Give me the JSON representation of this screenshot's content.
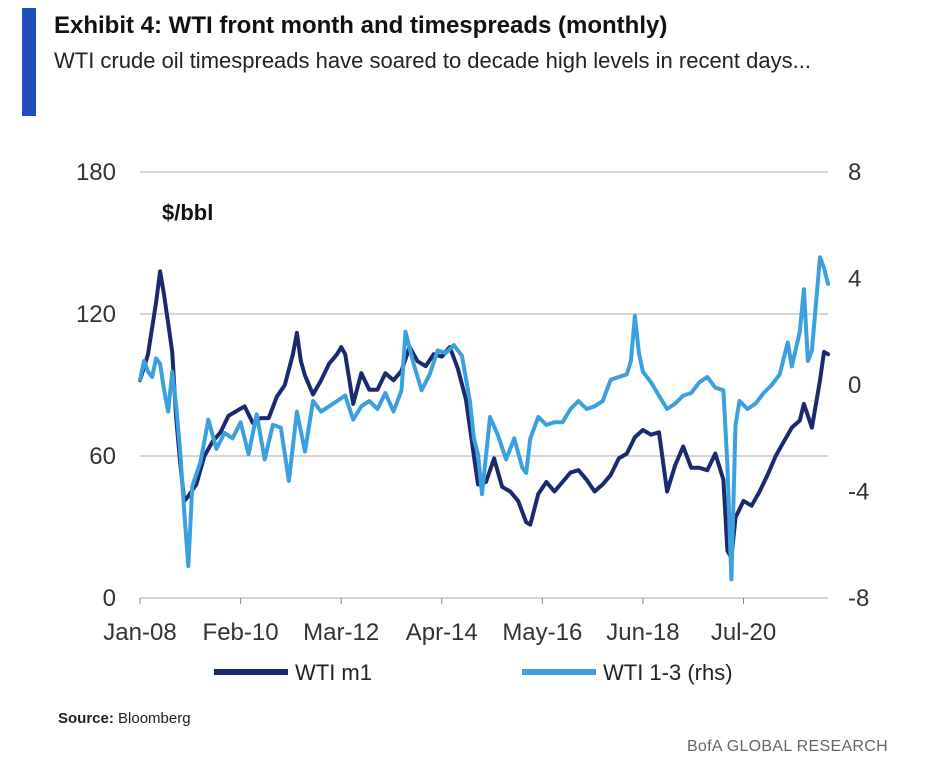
{
  "header": {
    "title": "Exhibit 4: WTI front month and timespreads (monthly)",
    "subtitle": "WTI crude oil timespreads have soared to decade high levels in recent days..."
  },
  "footer": {
    "source_label": "Source:",
    "source_value": "Bloomberg",
    "brand": "BofA GLOBAL RESEARCH"
  },
  "colors": {
    "accent": "#1f4fbf",
    "m1": "#1b2a6e",
    "spread": "#3aa0de",
    "grid": "#bdbdbd"
  },
  "chart_data": {
    "type": "line",
    "unit_label": "$/bbl",
    "ylim_left": [
      0,
      180
    ],
    "yticks_left": [
      0,
      60,
      120,
      180
    ],
    "ylim_right": [
      -8,
      8
    ],
    "yticks_right": [
      -8,
      -4,
      0,
      4,
      8
    ],
    "x_tick_labels": [
      "Jan-08",
      "Feb-10",
      "Mar-12",
      "Apr-14",
      "May-16",
      "Jun-18",
      "Jul-20"
    ],
    "x_tick_dates": [
      "2008-01",
      "2010-02",
      "2012-03",
      "2014-04",
      "2016-05",
      "2018-06",
      "2020-07"
    ],
    "xlim": [
      "2008-01",
      "2022-04"
    ],
    "grid": true,
    "legend_position": "bottom",
    "series": [
      {
        "name": "WTI m1",
        "axis": "left",
        "points": [
          [
            "2008-01",
            92
          ],
          [
            "2008-03",
            103
          ],
          [
            "2008-05",
            125
          ],
          [
            "2008-06",
            138
          ],
          [
            "2008-07",
            128
          ],
          [
            "2008-08",
            116
          ],
          [
            "2008-09",
            104
          ],
          [
            "2008-10",
            76
          ],
          [
            "2008-11",
            57
          ],
          [
            "2008-12",
            41
          ],
          [
            "2009-01",
            43
          ],
          [
            "2009-03",
            48
          ],
          [
            "2009-05",
            60
          ],
          [
            "2009-07",
            66
          ],
          [
            "2009-09",
            70
          ],
          [
            "2009-11",
            77
          ],
          [
            "2010-01",
            79
          ],
          [
            "2010-03",
            81
          ],
          [
            "2010-05",
            74
          ],
          [
            "2010-07",
            76
          ],
          [
            "2010-09",
            76
          ],
          [
            "2010-11",
            85
          ],
          [
            "2011-01",
            90
          ],
          [
            "2011-03",
            103
          ],
          [
            "2011-04",
            112
          ],
          [
            "2011-05",
            100
          ],
          [
            "2011-06",
            94
          ],
          [
            "2011-08",
            86
          ],
          [
            "2011-10",
            92
          ],
          [
            "2011-12",
            99
          ],
          [
            "2012-02",
            103
          ],
          [
            "2012-03",
            106
          ],
          [
            "2012-04",
            103
          ],
          [
            "2012-06",
            82
          ],
          [
            "2012-08",
            95
          ],
          [
            "2012-10",
            88
          ],
          [
            "2012-12",
            88
          ],
          [
            "2013-02",
            95
          ],
          [
            "2013-04",
            92
          ],
          [
            "2013-06",
            96
          ],
          [
            "2013-08",
            106
          ],
          [
            "2013-10",
            100
          ],
          [
            "2013-12",
            98
          ],
          [
            "2014-02",
            103
          ],
          [
            "2014-04",
            102
          ],
          [
            "2014-06",
            106
          ],
          [
            "2014-08",
            97
          ],
          [
            "2014-10",
            84
          ],
          [
            "2014-12",
            60
          ],
          [
            "2015-01",
            48
          ],
          [
            "2015-03",
            49
          ],
          [
            "2015-05",
            59
          ],
          [
            "2015-07",
            47
          ],
          [
            "2015-09",
            45
          ],
          [
            "2015-11",
            41
          ],
          [
            "2016-01",
            32
          ],
          [
            "2016-02",
            31
          ],
          [
            "2016-04",
            44
          ],
          [
            "2016-06",
            49
          ],
          [
            "2016-08",
            45
          ],
          [
            "2016-10",
            49
          ],
          [
            "2016-12",
            53
          ],
          [
            "2017-02",
            54
          ],
          [
            "2017-04",
            50
          ],
          [
            "2017-06",
            45
          ],
          [
            "2017-08",
            48
          ],
          [
            "2017-10",
            52
          ],
          [
            "2017-12",
            59
          ],
          [
            "2018-02",
            61
          ],
          [
            "2018-04",
            68
          ],
          [
            "2018-06",
            71
          ],
          [
            "2018-08",
            69
          ],
          [
            "2018-10",
            70
          ],
          [
            "2018-12",
            45
          ],
          [
            "2019-02",
            56
          ],
          [
            "2019-04",
            64
          ],
          [
            "2019-06",
            55
          ],
          [
            "2019-08",
            55
          ],
          [
            "2019-10",
            54
          ],
          [
            "2019-12",
            61
          ],
          [
            "2020-02",
            50
          ],
          [
            "2020-03",
            20
          ],
          [
            "2020-04",
            17
          ],
          [
            "2020-05",
            34
          ],
          [
            "2020-07",
            41
          ],
          [
            "2020-09",
            39
          ],
          [
            "2020-11",
            45
          ],
          [
            "2021-01",
            52
          ],
          [
            "2021-03",
            60
          ],
          [
            "2021-05",
            66
          ],
          [
            "2021-07",
            72
          ],
          [
            "2021-09",
            75
          ],
          [
            "2021-10",
            82
          ],
          [
            "2021-12",
            72
          ],
          [
            "2022-02",
            92
          ],
          [
            "2022-03",
            104
          ],
          [
            "2022-04",
            103
          ]
        ]
      },
      {
        "name": "WTI 1-3 (rhs)",
        "axis": "right",
        "points": [
          [
            "2008-01",
            0.2
          ],
          [
            "2008-02",
            0.9
          ],
          [
            "2008-03",
            0.5
          ],
          [
            "2008-04",
            0.3
          ],
          [
            "2008-05",
            1.0
          ],
          [
            "2008-06",
            0.8
          ],
          [
            "2008-07",
            -0.2
          ],
          [
            "2008-08",
            -1.0
          ],
          [
            "2008-09",
            0.5
          ],
          [
            "2008-10",
            -0.8
          ],
          [
            "2008-11",
            -2.5
          ],
          [
            "2008-12",
            -4.8
          ],
          [
            "2009-01",
            -6.8
          ],
          [
            "2009-02",
            -3.8
          ],
          [
            "2009-04",
            -2.9
          ],
          [
            "2009-06",
            -1.3
          ],
          [
            "2009-08",
            -2.4
          ],
          [
            "2009-10",
            -1.8
          ],
          [
            "2009-12",
            -2.0
          ],
          [
            "2010-02",
            -1.4
          ],
          [
            "2010-04",
            -2.6
          ],
          [
            "2010-06",
            -1.1
          ],
          [
            "2010-08",
            -2.8
          ],
          [
            "2010-10",
            -1.5
          ],
          [
            "2010-12",
            -1.6
          ],
          [
            "2011-02",
            -3.6
          ],
          [
            "2011-04",
            -1.0
          ],
          [
            "2011-06",
            -2.5
          ],
          [
            "2011-08",
            -0.6
          ],
          [
            "2011-10",
            -1.0
          ],
          [
            "2011-12",
            -0.8
          ],
          [
            "2012-02",
            -0.6
          ],
          [
            "2012-04",
            -0.4
          ],
          [
            "2012-06",
            -1.3
          ],
          [
            "2012-08",
            -0.8
          ],
          [
            "2012-10",
            -0.6
          ],
          [
            "2012-12",
            -0.9
          ],
          [
            "2013-02",
            -0.3
          ],
          [
            "2013-04",
            -1.0
          ],
          [
            "2013-06",
            -0.2
          ],
          [
            "2013-07",
            2.0
          ],
          [
            "2013-09",
            0.8
          ],
          [
            "2013-11",
            -0.2
          ],
          [
            "2014-01",
            0.4
          ],
          [
            "2014-03",
            1.3
          ],
          [
            "2014-05",
            1.2
          ],
          [
            "2014-07",
            1.5
          ],
          [
            "2014-09",
            1.1
          ],
          [
            "2014-11",
            -0.6
          ],
          [
            "2014-12",
            -2.0
          ],
          [
            "2015-01",
            -2.6
          ],
          [
            "2015-02",
            -4.1
          ],
          [
            "2015-04",
            -1.2
          ],
          [
            "2015-06",
            -1.9
          ],
          [
            "2015-08",
            -2.8
          ],
          [
            "2015-10",
            -2.0
          ],
          [
            "2015-12",
            -3.1
          ],
          [
            "2016-01",
            -3.3
          ],
          [
            "2016-02",
            -2.0
          ],
          [
            "2016-04",
            -1.2
          ],
          [
            "2016-06",
            -1.5
          ],
          [
            "2016-08",
            -1.4
          ],
          [
            "2016-10",
            -1.4
          ],
          [
            "2016-12",
            -0.9
          ],
          [
            "2017-02",
            -0.6
          ],
          [
            "2017-04",
            -0.9
          ],
          [
            "2017-06",
            -0.8
          ],
          [
            "2017-08",
            -0.6
          ],
          [
            "2017-10",
            0.2
          ],
          [
            "2017-12",
            0.3
          ],
          [
            "2018-02",
            0.4
          ],
          [
            "2018-03",
            0.9
          ],
          [
            "2018-04",
            2.6
          ],
          [
            "2018-05",
            1.2
          ],
          [
            "2018-06",
            0.5
          ],
          [
            "2018-08",
            0.1
          ],
          [
            "2018-10",
            -0.4
          ],
          [
            "2018-12",
            -0.9
          ],
          [
            "2019-02",
            -0.7
          ],
          [
            "2019-04",
            -0.4
          ],
          [
            "2019-06",
            -0.3
          ],
          [
            "2019-08",
            0.1
          ],
          [
            "2019-10",
            0.3
          ],
          [
            "2019-12",
            -0.1
          ],
          [
            "2020-02",
            -0.2
          ],
          [
            "2020-03",
            -3.0
          ],
          [
            "2020-04",
            -7.3
          ],
          [
            "2020-05",
            -1.5
          ],
          [
            "2020-06",
            -0.6
          ],
          [
            "2020-08",
            -0.9
          ],
          [
            "2020-10",
            -0.7
          ],
          [
            "2020-12",
            -0.3
          ],
          [
            "2021-02",
            0.0
          ],
          [
            "2021-04",
            0.4
          ],
          [
            "2021-06",
            1.6
          ],
          [
            "2021-07",
            0.7
          ],
          [
            "2021-09",
            2.0
          ],
          [
            "2021-10",
            3.6
          ],
          [
            "2021-11",
            0.9
          ],
          [
            "2021-12",
            1.3
          ],
          [
            "2022-02",
            4.8
          ],
          [
            "2022-03",
            4.4
          ],
          [
            "2022-04",
            3.8
          ]
        ]
      }
    ]
  }
}
